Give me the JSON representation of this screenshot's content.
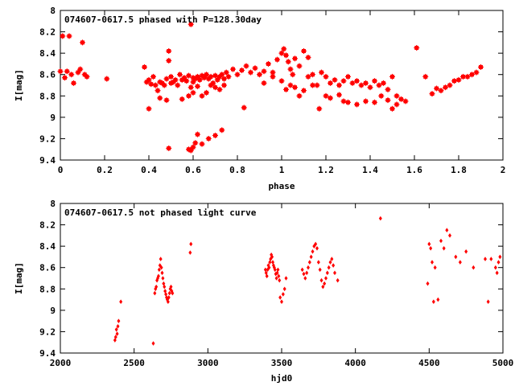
{
  "chart_data": [
    {
      "type": "scatter",
      "title": "074607-0617.5 phased with P=128.30day",
      "xlabel": "phase",
      "ylabel": "I[mag]",
      "xlim": [
        0,
        2
      ],
      "ylim": [
        8,
        9.4
      ],
      "y_inverted": true,
      "xticks": [
        "0",
        "0.2",
        "0.4",
        "0.6",
        "0.8",
        "1",
        "1.2",
        "1.4",
        "1.6",
        "1.8",
        "2"
      ],
      "xtick_values": [
        0,
        0.2,
        0.4,
        0.6,
        0.8,
        1,
        1.2,
        1.4,
        1.6,
        1.8,
        2
      ],
      "yticks": [
        "8",
        "8.2",
        "8.4",
        "8.6",
        "8.8",
        "9",
        "9.2",
        "9.4"
      ],
      "ytick_values": [
        8,
        8.2,
        8.4,
        8.6,
        8.8,
        9,
        9.2,
        9.4
      ],
      "marker": "star",
      "color": "#ff0000",
      "x": [
        0.0,
        0.01,
        0.02,
        0.03,
        0.04,
        0.05,
        0.06,
        0.08,
        0.09,
        0.1,
        0.11,
        0.12,
        0.21,
        0.38,
        0.39,
        0.4,
        0.41,
        0.42,
        0.43,
        0.44,
        0.45,
        0.46,
        0.47,
        0.48,
        0.49,
        0.49,
        0.5,
        0.5,
        0.51,
        0.52,
        0.53,
        0.54,
        0.55,
        0.56,
        0.57,
        0.58,
        0.59,
        0.59,
        0.6,
        0.6,
        0.61,
        0.62,
        0.63,
        0.64,
        0.65,
        0.66,
        0.67,
        0.68,
        0.69,
        0.7,
        0.71,
        0.72,
        0.73,
        0.74,
        0.75,
        0.76,
        0.78,
        0.8,
        0.82,
        0.84,
        0.86,
        0.88,
        0.9,
        0.92,
        0.94,
        0.96,
        0.98,
        1.0,
        1.01,
        1.02,
        1.03,
        1.04,
        1.05,
        1.06,
        1.08,
        1.1,
        1.12,
        1.14,
        1.16,
        1.18,
        1.2,
        1.22,
        1.24,
        1.26,
        1.28,
        1.3,
        1.32,
        1.34,
        1.36,
        1.38,
        1.4,
        1.42,
        1.44,
        1.46,
        1.48,
        1.5,
        1.52,
        1.54,
        1.56,
        1.61,
        1.65,
        1.68,
        1.7,
        1.72,
        1.74,
        1.76,
        1.78,
        1.8,
        1.82,
        1.84,
        1.86,
        1.88,
        1.9,
        0.4,
        0.45,
        0.48,
        0.55,
        0.58,
        0.6,
        0.62,
        0.64,
        0.66,
        0.68,
        0.7,
        0.72,
        0.74,
        0.83,
        0.92,
        0.96,
        1.0,
        1.02,
        1.04,
        1.06,
        1.08,
        1.1,
        1.12,
        1.14,
        1.17,
        1.2,
        1.22,
        1.26,
        1.28,
        1.3,
        1.34,
        1.38,
        1.42,
        1.45,
        1.48,
        1.5,
        1.52,
        0.58,
        0.59,
        0.6,
        0.61,
        0.62,
        0.64,
        0.67,
        0.7,
        0.73,
        0.49
      ],
      "y": [
        8.57,
        8.24,
        8.63,
        8.57,
        8.24,
        8.6,
        8.68,
        8.58,
        8.55,
        8.3,
        8.6,
        8.62,
        8.64,
        8.53,
        8.67,
        8.65,
        8.69,
        8.62,
        8.7,
        8.75,
        8.67,
        8.68,
        8.7,
        8.64,
        8.47,
        8.38,
        8.62,
        8.68,
        8.67,
        8.65,
        8.7,
        8.6,
        8.65,
        8.63,
        8.66,
        8.61,
        8.13,
        8.72,
        8.67,
        8.63,
        8.64,
        8.62,
        8.65,
        8.61,
        8.63,
        8.6,
        8.64,
        8.62,
        8.68,
        8.61,
        8.65,
        8.62,
        8.6,
        8.64,
        8.58,
        8.62,
        8.55,
        8.6,
        8.56,
        8.52,
        8.58,
        8.54,
        8.6,
        8.57,
        8.5,
        8.58,
        8.46,
        8.4,
        8.36,
        8.42,
        8.48,
        8.55,
        8.6,
        8.45,
        8.52,
        8.38,
        8.44,
        8.6,
        8.7,
        8.58,
        8.62,
        8.68,
        8.65,
        8.7,
        8.66,
        8.62,
        8.68,
        8.66,
        8.7,
        8.68,
        8.72,
        8.66,
        8.7,
        8.68,
        8.74,
        8.62,
        8.8,
        8.83,
        8.85,
        8.35,
        8.62,
        8.78,
        8.73,
        8.75,
        8.72,
        8.7,
        8.66,
        8.65,
        8.62,
        8.62,
        8.6,
        8.58,
        8.53,
        8.92,
        8.82,
        8.84,
        8.83,
        8.8,
        8.77,
        8.71,
        8.8,
        8.77,
        8.7,
        8.72,
        8.74,
        8.7,
        8.91,
        8.68,
        8.62,
        8.66,
        8.74,
        8.7,
        8.72,
        8.8,
        8.75,
        8.62,
        8.7,
        8.92,
        8.8,
        8.82,
        8.79,
        8.85,
        8.86,
        8.88,
        8.85,
        8.86,
        8.8,
        8.84,
        8.92,
        8.88,
        9.3,
        9.31,
        9.28,
        9.24,
        9.16,
        9.25,
        9.2,
        9.17,
        9.12,
        9.29
      ]
    },
    {
      "type": "scatter",
      "title": "074607-0617.5 not phased light curve",
      "xlabel": "hjd0",
      "ylabel": "I[mag]",
      "xlim": [
        2000,
        5000
      ],
      "ylim": [
        8,
        9.4
      ],
      "y_inverted": true,
      "xticks": [
        "2000",
        "2500",
        "3000",
        "3500",
        "4000",
        "4500",
        "5000"
      ],
      "xtick_values": [
        2000,
        2500,
        3000,
        3500,
        4000,
        4500,
        5000
      ],
      "yticks": [
        "8",
        "8.2",
        "8.4",
        "8.6",
        "8.8",
        "9",
        "9.2",
        "9.4"
      ],
      "ytick_values": [
        8,
        8.2,
        8.4,
        8.6,
        8.8,
        9,
        9.2,
        9.4
      ],
      "marker": "diamond",
      "color": "#ff0000",
      "x": [
        2370,
        2375,
        2380,
        2385,
        2390,
        2395,
        2410,
        2630,
        2640,
        2645,
        2650,
        2655,
        2660,
        2665,
        2670,
        2675,
        2680,
        2685,
        2690,
        2695,
        2700,
        2705,
        2710,
        2715,
        2720,
        2725,
        2730,
        2735,
        2740,
        2745,
        2750,
        2755,
        2760,
        2880,
        2885,
        3390,
        3395,
        3400,
        3405,
        3410,
        3415,
        3420,
        3425,
        3430,
        3435,
        3440,
        3445,
        3450,
        3455,
        3460,
        3465,
        3470,
        3475,
        3480,
        3485,
        3490,
        3500,
        3510,
        3520,
        3530,
        3640,
        3650,
        3660,
        3670,
        3680,
        3690,
        3700,
        3710,
        3720,
        3730,
        3740,
        3750,
        3760,
        3770,
        3780,
        3790,
        3800,
        3810,
        3820,
        3830,
        3840,
        3850,
        3860,
        3880,
        4170,
        4490,
        4500,
        4510,
        4520,
        4530,
        4540,
        4560,
        4580,
        4600,
        4620,
        4640,
        4680,
        4710,
        4750,
        4800,
        4880,
        4900,
        4920,
        4950,
        4960,
        4970,
        4980
      ],
      "y": [
        9.28,
        9.25,
        9.18,
        9.22,
        9.15,
        9.1,
        8.92,
        9.31,
        8.84,
        8.8,
        8.78,
        8.72,
        8.7,
        8.68,
        8.62,
        8.58,
        8.52,
        8.6,
        8.65,
        8.7,
        8.75,
        8.78,
        8.82,
        8.85,
        8.88,
        8.9,
        8.92,
        8.88,
        8.84,
        8.8,
        8.78,
        8.82,
        8.84,
        8.46,
        8.38,
        8.62,
        8.65,
        8.68,
        8.62,
        8.58,
        8.6,
        8.55,
        8.52,
        8.48,
        8.5,
        8.55,
        8.58,
        8.6,
        8.62,
        8.66,
        8.7,
        8.65,
        8.62,
        8.68,
        8.72,
        8.88,
        8.92,
        8.85,
        8.8,
        8.7,
        8.62,
        8.66,
        8.7,
        8.65,
        8.6,
        8.55,
        8.5,
        8.45,
        8.4,
        8.38,
        8.42,
        8.55,
        8.62,
        8.72,
        8.78,
        8.75,
        8.7,
        8.65,
        8.6,
        8.55,
        8.52,
        8.58,
        8.65,
        8.72,
        8.14,
        8.75,
        8.38,
        8.42,
        8.55,
        8.92,
        8.6,
        8.9,
        8.35,
        8.42,
        8.25,
        8.3,
        8.5,
        8.55,
        8.45,
        8.6,
        8.52,
        8.92,
        8.52,
        8.6,
        8.65,
        8.55,
        8.5
      ]
    }
  ]
}
